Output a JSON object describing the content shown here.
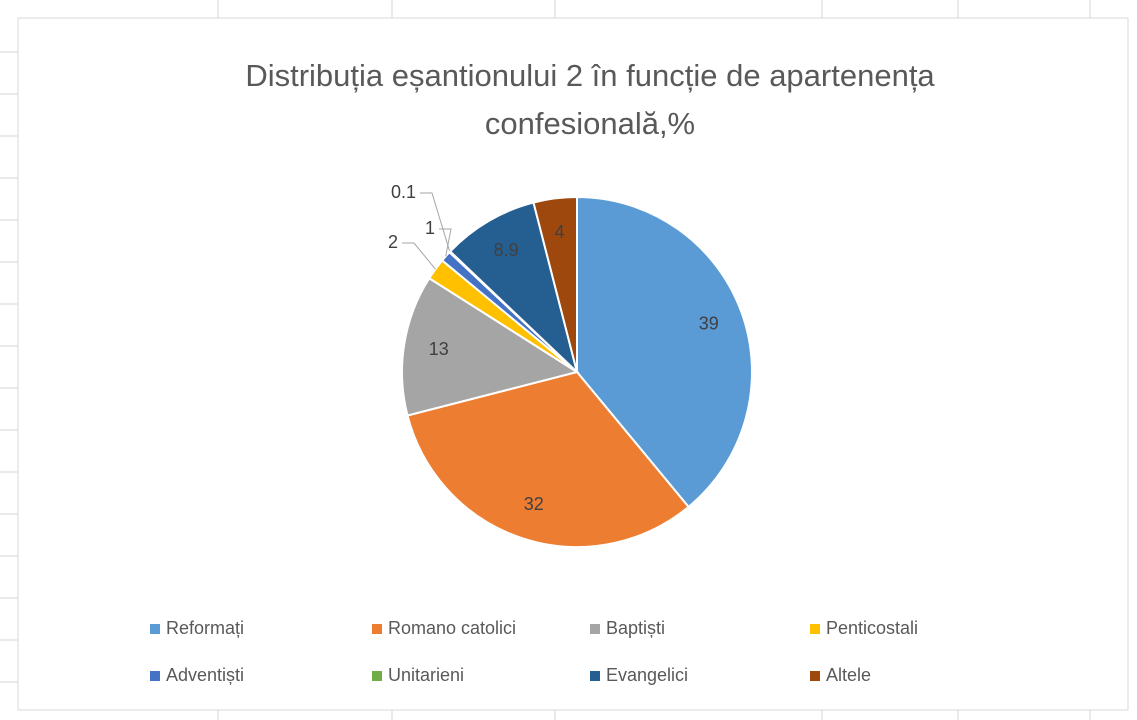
{
  "chart_data": {
    "type": "pie",
    "title": "Distribuția eșantionului 2 în funcție de apartenența confesională,%",
    "categories": [
      "Reformați",
      "Romano catolici",
      "Baptiști",
      "Penticostali",
      "Adventiști",
      "Unitarieni",
      "Evangelici",
      "Altele"
    ],
    "values": [
      39,
      32,
      13,
      2,
      1,
      0.1,
      8.9,
      4
    ],
    "colors": [
      "#5b9bd5",
      "#ed7d31",
      "#a5a5a5",
      "#ffc000",
      "#4472c4",
      "#70ad47",
      "#255e91",
      "#9e480e"
    ],
    "legend": "bottom"
  }
}
